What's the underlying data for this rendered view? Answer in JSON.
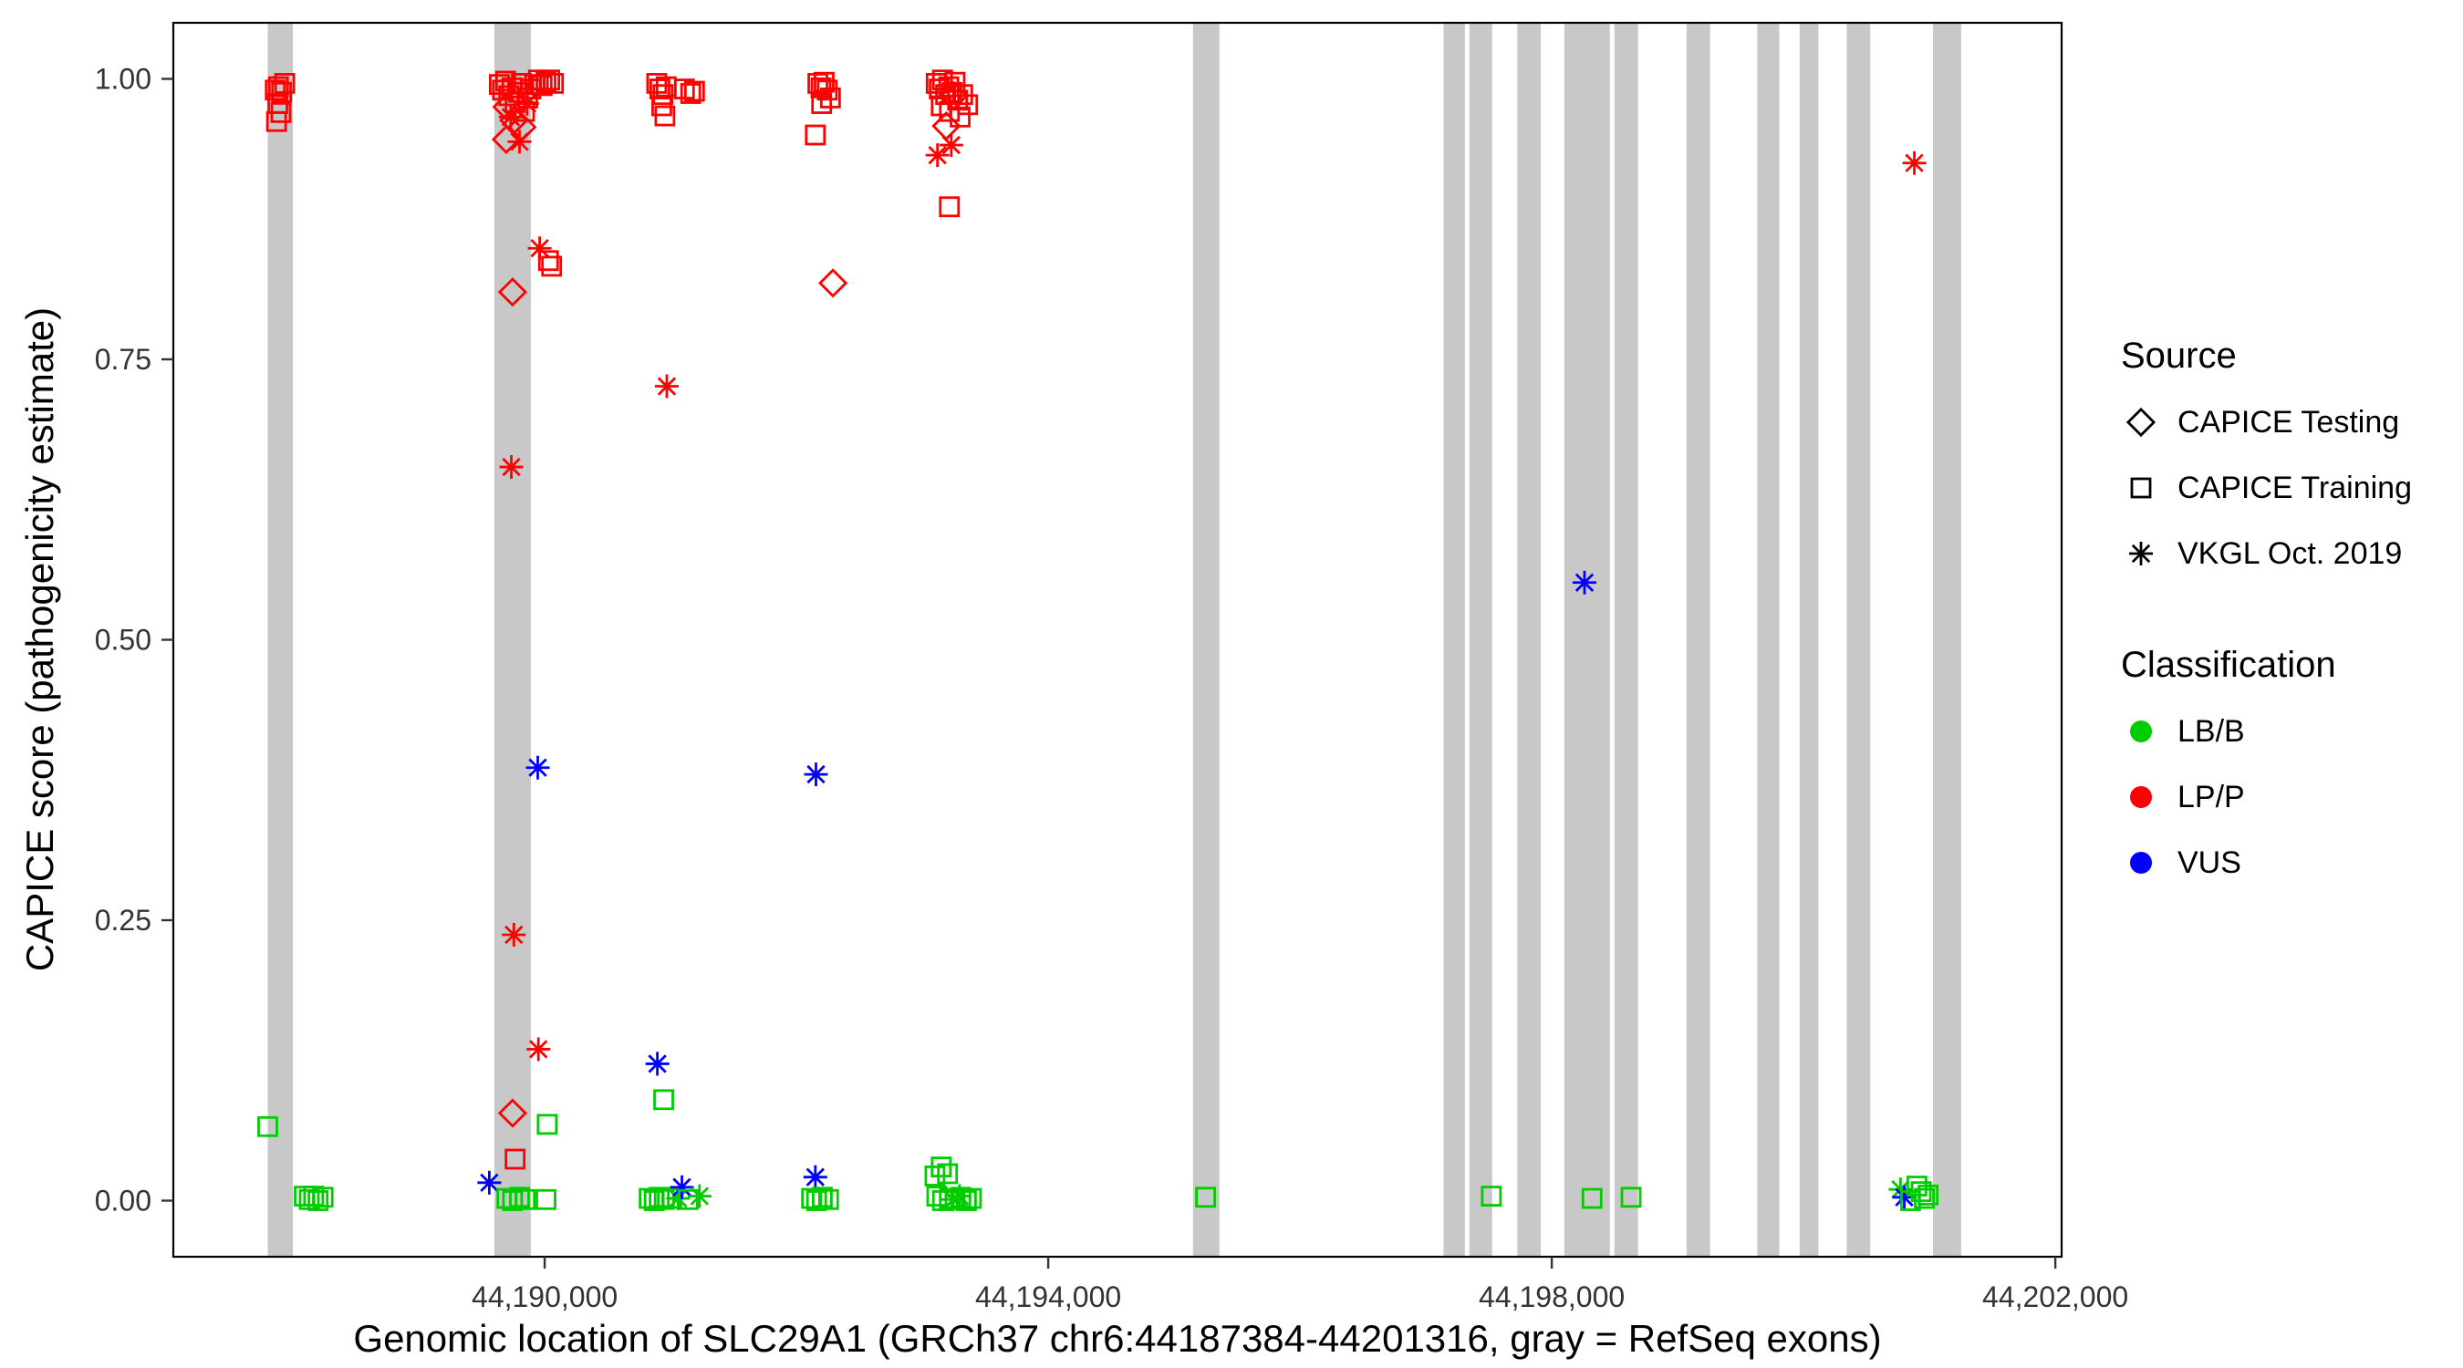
{
  "legend": {
    "source_title": "Source",
    "source_items": [
      {
        "shape": "diamond",
        "label": "CAPICE Testing"
      },
      {
        "shape": "square",
        "label": "CAPICE Training"
      },
      {
        "shape": "asterisk",
        "label": "VKGL Oct. 2019"
      }
    ],
    "classification_title": "Classification",
    "classification_items": [
      {
        "color": "#00CC00",
        "label": "LB/B"
      },
      {
        "color": "#FF0000",
        "label": "LP/P"
      },
      {
        "color": "#0000FF",
        "label": "VUS"
      }
    ]
  },
  "chart_data": {
    "type": "scatter",
    "title": "",
    "xlabel": "Genomic location of SLC29A1 (GRCh37 chr6:44187384-44201316, gray = RefSeq exons)",
    "ylabel": "CAPICE score (pathogenicity estimate)",
    "xlim": [
      44187050,
      44202050
    ],
    "ylim": [
      -0.05,
      1.05
    ],
    "grid": false,
    "legend_position": "right",
    "x_ticks": [
      {
        "value": 44190000,
        "label": "44,190,000"
      },
      {
        "value": 44194000,
        "label": "44,194,000"
      },
      {
        "value": 44198000,
        "label": "44,198,000"
      },
      {
        "value": 44202000,
        "label": "44,202,000"
      }
    ],
    "y_ticks": [
      {
        "value": 0.0,
        "label": "0.00"
      },
      {
        "value": 0.25,
        "label": "0.25"
      },
      {
        "value": 0.5,
        "label": "0.50"
      },
      {
        "value": 0.75,
        "label": "0.75"
      },
      {
        "value": 1.0,
        "label": "1.00"
      }
    ],
    "exon_color": "#C8C8C8",
    "exons": [
      [
        44187800,
        44188000
      ],
      [
        44189600,
        44189890
      ],
      [
        44195150,
        44195360
      ],
      [
        44197140,
        44197310
      ],
      [
        44197345,
        44197527
      ],
      [
        44197726,
        44197913
      ],
      [
        44198100,
        44198461
      ],
      [
        44198498,
        44198685
      ],
      [
        44199071,
        44199258
      ],
      [
        44199632,
        44199807
      ],
      [
        44199969,
        44200118
      ],
      [
        44200343,
        44200530
      ],
      [
        44201028,
        44201252
      ]
    ],
    "source_shapes": {
      "D": "diamond",
      "S": "square",
      "A": "asterisk"
    },
    "source_names": {
      "D": "CAPICE Testing",
      "S": "CAPICE Training",
      "A": "VKGL Oct. 2019"
    },
    "class_colors": {
      "G": "#00CC00",
      "R": "#FF0000",
      "B": "#0000FF"
    },
    "class_names": {
      "G": "LB/B",
      "R": "LP/P",
      "B": "VUS"
    },
    "point_format": [
      "x_bp",
      "capice_score",
      "source_code",
      "classification_code"
    ],
    "points": [
      [
        44187800,
        0.066,
        "S",
        "G"
      ],
      [
        44187860,
        0.99,
        "S",
        "R"
      ],
      [
        44187885,
        0.993,
        "S",
        "R"
      ],
      [
        44187910,
        0.988,
        "S",
        "R"
      ],
      [
        44187935,
        0.996,
        "S",
        "R"
      ],
      [
        44187880,
        0.978,
        "S",
        "R"
      ],
      [
        44187905,
        0.97,
        "S",
        "R"
      ],
      [
        44187870,
        0.962,
        "S",
        "R"
      ],
      [
        44188090,
        0.004,
        "S",
        "G"
      ],
      [
        44188130,
        0.001,
        "S",
        "G"
      ],
      [
        44188165,
        0.004,
        "S",
        "G"
      ],
      [
        44188200,
        0.0,
        "S",
        "G"
      ],
      [
        44188240,
        0.003,
        "S",
        "G"
      ],
      [
        44189640,
        0.995,
        "S",
        "R"
      ],
      [
        44189665,
        0.99,
        "S",
        "R"
      ],
      [
        44189690,
        0.998,
        "S",
        "R"
      ],
      [
        44189715,
        0.985,
        "S",
        "R"
      ],
      [
        44189740,
        0.992,
        "S",
        "R"
      ],
      [
        44189765,
        0.979,
        "S",
        "R"
      ],
      [
        44189790,
        0.988,
        "S",
        "R"
      ],
      [
        44189815,
        0.996,
        "S",
        "R"
      ],
      [
        44189840,
        0.971,
        "S",
        "R"
      ],
      [
        44189865,
        0.983,
        "S",
        "R"
      ],
      [
        44189890,
        0.991,
        "S",
        "R"
      ],
      [
        44189920,
        0.995,
        "S",
        "R"
      ],
      [
        44189950,
        0.999,
        "S",
        "R"
      ],
      [
        44189980,
        0.994,
        "S",
        "R"
      ],
      [
        44190010,
        0.997,
        "S",
        "R"
      ],
      [
        44190040,
        0.999,
        "S",
        "R"
      ],
      [
        44190070,
        0.996,
        "S",
        "R"
      ],
      [
        44189700,
        0.975,
        "D",
        "R"
      ],
      [
        44189755,
        0.963,
        "D",
        "R"
      ],
      [
        44189820,
        0.957,
        "D",
        "R"
      ],
      [
        44189695,
        0.946,
        "D",
        "R"
      ],
      [
        44189730,
        0.966,
        "A",
        "R"
      ],
      [
        44189800,
        0.944,
        "A",
        "R"
      ],
      [
        44189860,
        0.978,
        "A",
        "R"
      ],
      [
        44189960,
        0.849,
        "A",
        "R"
      ],
      [
        44190030,
        0.838,
        "S",
        "R"
      ],
      [
        44190055,
        0.833,
        "S",
        "R"
      ],
      [
        44189745,
        0.81,
        "D",
        "R"
      ],
      [
        44189735,
        0.654,
        "A",
        "R"
      ],
      [
        44189945,
        0.386,
        "A",
        "B"
      ],
      [
        44189755,
        0.237,
        "A",
        "R"
      ],
      [
        44189950,
        0.135,
        "A",
        "R"
      ],
      [
        44189745,
        0.078,
        "D",
        "R"
      ],
      [
        44189765,
        0.037,
        "S",
        "R"
      ],
      [
        44189560,
        0.016,
        "A",
        "B"
      ],
      [
        44190020,
        0.068,
        "S",
        "G"
      ],
      [
        44189700,
        0.002,
        "S",
        "G"
      ],
      [
        44189745,
        0.0,
        "S",
        "G"
      ],
      [
        44189800,
        0.003,
        "S",
        "G"
      ],
      [
        44189845,
        0.001,
        "S",
        "G"
      ],
      [
        44190010,
        0.001,
        "S",
        "G"
      ],
      [
        44190890,
        0.996,
        "S",
        "R"
      ],
      [
        44190915,
        0.991,
        "S",
        "R"
      ],
      [
        44190940,
        0.986,
        "S",
        "R"
      ],
      [
        44190965,
        0.993,
        "S",
        "R"
      ],
      [
        44190930,
        0.976,
        "S",
        "R"
      ],
      [
        44190955,
        0.967,
        "S",
        "R"
      ],
      [
        44191110,
        0.991,
        "S",
        "R"
      ],
      [
        44191160,
        0.987,
        "S",
        "R"
      ],
      [
        44191190,
        0.989,
        "S",
        "R"
      ],
      [
        44190970,
        0.726,
        "A",
        "R"
      ],
      [
        44190945,
        0.09,
        "S",
        "G"
      ],
      [
        44190895,
        0.122,
        "A",
        "B"
      ],
      [
        44190830,
        0.002,
        "S",
        "G"
      ],
      [
        44190870,
        0.0,
        "S",
        "G"
      ],
      [
        44190910,
        0.003,
        "S",
        "G"
      ],
      [
        44190950,
        0.001,
        "S",
        "G"
      ],
      [
        44191010,
        0.002,
        "S",
        "G"
      ],
      [
        44191060,
        0.002,
        "A",
        "G"
      ],
      [
        44191090,
        0.012,
        "A",
        "B"
      ],
      [
        44191140,
        0.001,
        "S",
        "G"
      ],
      [
        44191230,
        0.004,
        "A",
        "G"
      ],
      [
        44192170,
        0.996,
        "S",
        "R"
      ],
      [
        44192195,
        0.992,
        "S",
        "R"
      ],
      [
        44192220,
        0.997,
        "S",
        "R"
      ],
      [
        44192245,
        0.99,
        "S",
        "R"
      ],
      [
        44192270,
        0.983,
        "S",
        "R"
      ],
      [
        44192200,
        0.978,
        "S",
        "R"
      ],
      [
        44192150,
        0.95,
        "S",
        "R"
      ],
      [
        44192290,
        0.818,
        "D",
        "R"
      ],
      [
        44192155,
        0.38,
        "A",
        "B"
      ],
      [
        44192150,
        0.021,
        "A",
        "B"
      ],
      [
        44192120,
        0.002,
        "S",
        "G"
      ],
      [
        44192160,
        0.0,
        "S",
        "G"
      ],
      [
        44192205,
        0.003,
        "S",
        "G"
      ],
      [
        44192255,
        0.001,
        "S",
        "G"
      ],
      [
        44193110,
        0.996,
        "S",
        "R"
      ],
      [
        44193135,
        0.991,
        "S",
        "R"
      ],
      [
        44193160,
        0.999,
        "S",
        "R"
      ],
      [
        44193185,
        0.986,
        "S",
        "R"
      ],
      [
        44193210,
        0.993,
        "S",
        "R"
      ],
      [
        44193235,
        0.988,
        "S",
        "R"
      ],
      [
        44193260,
        0.997,
        "S",
        "R"
      ],
      [
        44193150,
        0.976,
        "S",
        "R"
      ],
      [
        44193215,
        0.971,
        "S",
        "R"
      ],
      [
        44193280,
        0.981,
        "S",
        "R"
      ],
      [
        44193320,
        0.986,
        "S",
        "R"
      ],
      [
        44193360,
        0.977,
        "S",
        "R"
      ],
      [
        44193300,
        0.966,
        "S",
        "R"
      ],
      [
        44193250,
        0.985,
        "D",
        "R"
      ],
      [
        44193190,
        0.958,
        "D",
        "R"
      ],
      [
        44193120,
        0.932,
        "A",
        "R"
      ],
      [
        44193230,
        0.941,
        "A",
        "R"
      ],
      [
        44193215,
        0.886,
        "S",
        "R"
      ],
      [
        44193100,
        0.022,
        "S",
        "G"
      ],
      [
        44193150,
        0.03,
        "S",
        "G"
      ],
      [
        44193200,
        0.024,
        "S",
        "G"
      ],
      [
        44193115,
        0.004,
        "S",
        "G"
      ],
      [
        44193160,
        0.0,
        "S",
        "G"
      ],
      [
        44193215,
        0.002,
        "S",
        "G"
      ],
      [
        44193260,
        0.001,
        "S",
        "G"
      ],
      [
        44193305,
        0.003,
        "S",
        "G"
      ],
      [
        44193350,
        0.0,
        "S",
        "G"
      ],
      [
        44193390,
        0.002,
        "S",
        "G"
      ],
      [
        44193245,
        0.001,
        "A",
        "G"
      ],
      [
        44193295,
        0.004,
        "A",
        "G"
      ],
      [
        44195250,
        0.003,
        "S",
        "G"
      ],
      [
        44197520,
        0.004,
        "S",
        "G"
      ],
      [
        44198320,
        0.002,
        "S",
        "G"
      ],
      [
        44198630,
        0.003,
        "S",
        "G"
      ],
      [
        44198260,
        0.551,
        "A",
        "B"
      ],
      [
        44200880,
        0.925,
        "A",
        "R"
      ],
      [
        44200770,
        0.01,
        "A",
        "G"
      ],
      [
        44200800,
        0.003,
        "A",
        "B"
      ],
      [
        44200900,
        0.013,
        "S",
        "G"
      ],
      [
        44200935,
        0.008,
        "S",
        "G"
      ],
      [
        44200960,
        0.002,
        "S",
        "G"
      ],
      [
        44200990,
        0.005,
        "S",
        "G"
      ],
      [
        44200850,
        0.0,
        "S",
        "G"
      ]
    ]
  }
}
